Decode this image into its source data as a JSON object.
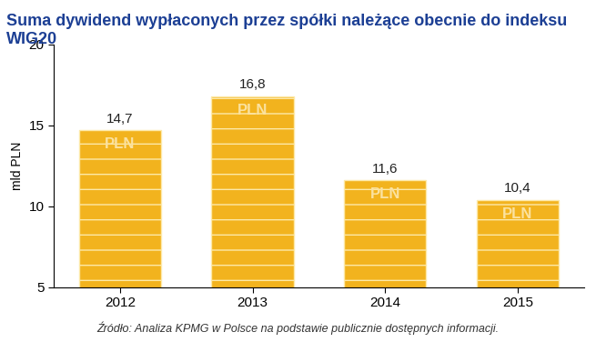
{
  "chart_data": {
    "type": "bar",
    "title": "Suma dywidend wypłaconych przez spółki należące obecnie do indeksu WIG20",
    "y_label": "mld PLN",
    "categories": [
      "2012",
      "2013",
      "2014",
      "2015"
    ],
    "values": [
      14.7,
      16.8,
      11.6,
      10.4
    ],
    "value_labels": [
      "14,7",
      "16,8",
      "11,6",
      "10,4"
    ],
    "data_labels": true,
    "mark_text": "PLN",
    "color": "#f2b31e",
    "ylim": [
      5,
      20
    ],
    "yticks": [
      5,
      10,
      15,
      20
    ],
    "grid": false,
    "annotations": [
      "Źródło: Analiza KPMG w Polsce na podstawie publicznie dostępnych informacji."
    ]
  }
}
